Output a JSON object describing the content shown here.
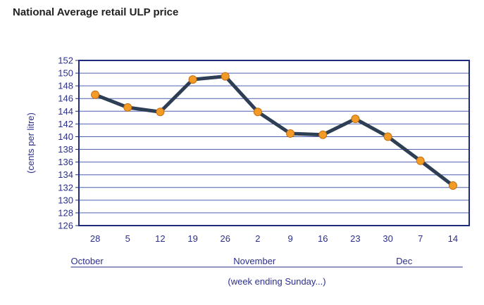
{
  "title": "National Average retail ULP price",
  "colors": {
    "axis": "#1f2b7a",
    "grid": "#4f5fb0",
    "line": "#2e3f55",
    "marker_fill": "#f29b26",
    "marker_stroke": "#c26e10",
    "text": "#2b2f8c"
  },
  "chart_data": {
    "type": "line",
    "ylabel": "(cents per litre)",
    "xlabel": "(week ending Sunday...)",
    "ylim": [
      126,
      152
    ],
    "y_ticks": [
      "126",
      "128",
      "130",
      "132",
      "134",
      "136",
      "138",
      "140",
      "142",
      "144",
      "146",
      "148",
      "150",
      "152"
    ],
    "categories": [
      "28",
      "5",
      "12",
      "19",
      "26",
      "2",
      "9",
      "16",
      "23",
      "30",
      "7",
      "14"
    ],
    "series": [
      {
        "values": [
          146.6,
          144.6,
          143.9,
          149.0,
          149.5,
          143.9,
          140.5,
          140.3,
          142.8,
          140.0,
          136.2,
          132.3
        ]
      }
    ],
    "month_groups": [
      {
        "label": "October",
        "start": 0,
        "end": 4
      },
      {
        "label": "November",
        "start": 5,
        "end": 9
      },
      {
        "label": "Dec",
        "start": 10,
        "end": 11
      }
    ],
    "grid": true
  }
}
